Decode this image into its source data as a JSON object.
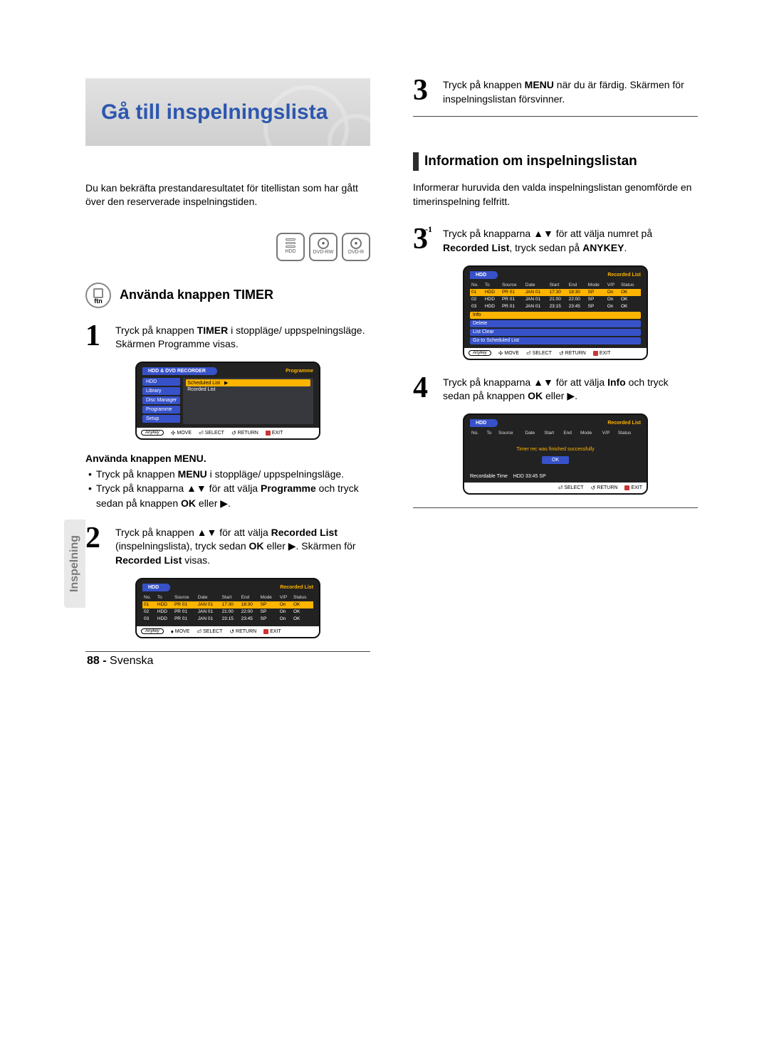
{
  "colors": {
    "accent_blue": "#2d57af",
    "screen_gold": "#ffb400",
    "screen_blue": "#3752c9",
    "exit_red": "#c33",
    "text_gray": "#7a7a7a",
    "banner_grad_top": "#e2e2e2",
    "banner_grad_bot": "#cfcfcf"
  },
  "banner_title": "Gå till inspelningslista",
  "intro": "Du kan bekräfta prestandaresultatet för titellistan som har gått över den reserverade inspelningstiden.",
  "media_labels": {
    "hdd": "HDD",
    "dvdrw": "DVD-RW",
    "dvdr": "DVD-R"
  },
  "timer": {
    "badge_abbr": "ftn",
    "heading": "Använda knappen TIMER",
    "step1_a": "Tryck på knappen ",
    "step1_b": "TIMER",
    "step1_c": " i stoppläge/ uppspelningsläge. Skärmen Programme visas.",
    "menu_head": "Använda knappen MENU.",
    "b1_a": "Tryck på knappen ",
    "b1_b": "MENU",
    "b1_c": " i stoppläge/ uppspelningsläge.",
    "b2_a": "Tryck på knapparna ▲▼ för att välja ",
    "b2_b": "Programme",
    "b2_c": " och tryck sedan på knappen ",
    "b2_d": "OK",
    "b2_e": " eller ▶.",
    "step2_a": "Tryck på knappen ▲▼ för att välja ",
    "step2_b": "Recorded List",
    "step2_c": " (inspelningslista), tryck sedan ",
    "step2_d": "OK",
    "step2_e": " eller ▶. Skärmen för ",
    "step2_f": "Recorded List",
    "step2_g": " visas."
  },
  "right": {
    "step3_a": "Tryck på knappen ",
    "step3_b": "MENU",
    "step3_c": " när du är färdig. Skärmen för inspelningslistan försvinner.",
    "info_heading": "Information om inspelningslistan",
    "info_desc": "Informerar huruvida den valda inspelningslistan genomförde en timerinspelning felfritt.",
    "step3b_a": "Tryck på knapparna ▲▼ för att välja numret på ",
    "step3b_b": "Recorded List",
    "step3b_c": ", tryck sedan på ",
    "step3b_d": "ANYKEY",
    "step3b_e": ".",
    "step4_a": "Tryck på knapparna ▲▼ för att välja ",
    "step4_b": "Info",
    "step4_c": " och tryck sedan på knappen ",
    "step4_d": "OK",
    "step4_e": " eller ▶."
  },
  "screen_prog": {
    "hd_l": "HDD & DVD RECORDER",
    "hd_r": "Programme",
    "menu": [
      "HDD",
      "Library",
      "Disc Manager",
      "Programme",
      "Setup"
    ],
    "list": [
      "Scheduled List",
      "Rcorded List"
    ],
    "selected_index": 0
  },
  "screen_list": {
    "hd_l": "HDD",
    "hd_r": "Recorded List",
    "cols": [
      "No.",
      "To",
      "Source",
      "Date",
      "Start",
      "End",
      "Mode",
      "V/P",
      "Status"
    ],
    "rows": [
      [
        "01",
        "HDD",
        "PR 01",
        "JAN 01",
        "17:30",
        "18:30",
        "SP",
        "On",
        "OK"
      ],
      [
        "02",
        "HDD",
        "PR 01",
        "JAN 01",
        "21:00",
        "22:00",
        "SP",
        "On",
        "OK"
      ],
      [
        "03",
        "HDD",
        "PR 01",
        "JAN 01",
        "23:15",
        "23:45",
        "SP",
        "On",
        "OK"
      ]
    ]
  },
  "screen_ctx": {
    "items": [
      "Info",
      "Delete",
      "List Clear",
      "Go to Scheduled List"
    ],
    "selected_index": 0
  },
  "screen_final": {
    "msg": "Timer rec was finished successfully",
    "ok": "OK",
    "rec_label": "Recordable Time",
    "rec_val": "HDD  33:45 SP"
  },
  "footer_controls": {
    "anykey": "Anykey",
    "move": "MOVE",
    "select": "SELECT",
    "return": "RETURN",
    "exit": "EXIT"
  },
  "side_tab": "Inspelning",
  "page_footer": {
    "num": "88 -",
    "lang": "Svenska"
  }
}
